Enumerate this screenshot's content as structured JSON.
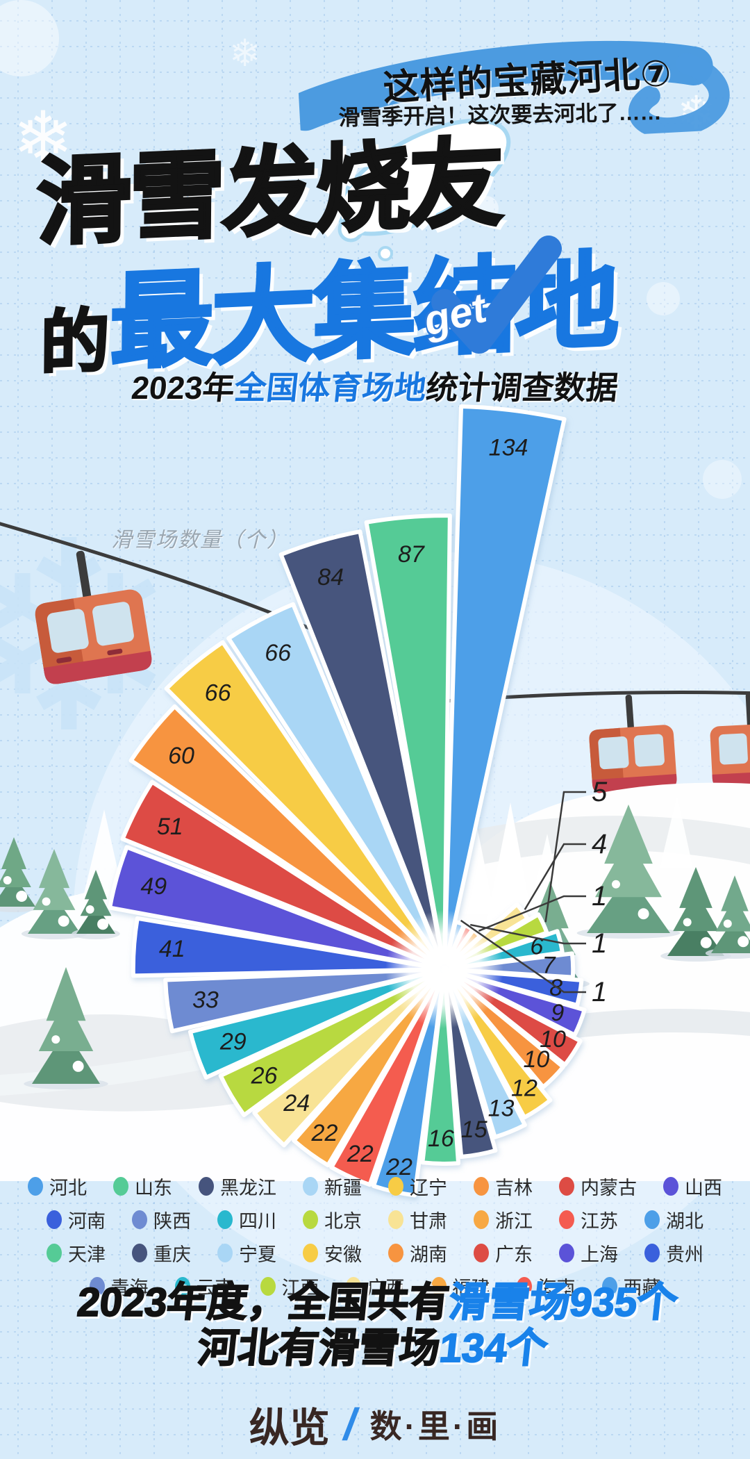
{
  "badge": {
    "title": "这样的宝藏河北⑦",
    "subtitle": "滑雪季开启！这次要去河北了……"
  },
  "title": {
    "line1": "滑雪发烧友",
    "line2_prefix": "的",
    "line2_main": "最大集结地",
    "stamp": "get"
  },
  "subtitle": {
    "prefix": "2023年",
    "highlight": "全国体育场地",
    "suffix": "统计调查数据"
  },
  "chart_data": {
    "type": "rose",
    "title": "2023年全国体育场地统计调查数据",
    "axis_label": "滑雪场数量（个）",
    "unit": "个",
    "legend_position": "bottom",
    "series": [
      {
        "name": "河北",
        "value": 134,
        "color": "#4D9FE8"
      },
      {
        "name": "山东",
        "value": 87,
        "color": "#55CB96"
      },
      {
        "name": "黑龙江",
        "value": 84,
        "color": "#46547D"
      },
      {
        "name": "新疆",
        "value": 66,
        "color": "#A9D6F5"
      },
      {
        "name": "辽宁",
        "value": 66,
        "color": "#F7CC45"
      },
      {
        "name": "吉林",
        "value": 60,
        "color": "#F79440"
      },
      {
        "name": "内蒙古",
        "value": 51,
        "color": "#DD4C44"
      },
      {
        "name": "山西",
        "value": 49,
        "color": "#5B53D8"
      },
      {
        "name": "河南",
        "value": 41,
        "color": "#3A60DC"
      },
      {
        "name": "陕西",
        "value": 33,
        "color": "#6E8BD2"
      },
      {
        "name": "四川",
        "value": 29,
        "color": "#29B8CE"
      },
      {
        "name": "北京",
        "value": 26,
        "color": "#B8D93F"
      },
      {
        "name": "甘肃",
        "value": 24,
        "color": "#F8E395"
      },
      {
        "name": "浙江",
        "value": 22,
        "color": "#F7A843"
      },
      {
        "name": "江苏",
        "value": 22,
        "color": "#F45B50"
      },
      {
        "name": "湖北",
        "value": 22,
        "color": "#4D9FE8"
      },
      {
        "name": "天津",
        "value": 16,
        "color": "#55CB96"
      },
      {
        "name": "重庆",
        "value": 15,
        "color": "#46547D"
      },
      {
        "name": "宁夏",
        "value": 13,
        "color": "#A9D6F5"
      },
      {
        "name": "安徽",
        "value": 12,
        "color": "#F7CC45"
      },
      {
        "name": "湖南",
        "value": 10,
        "color": "#F79440"
      },
      {
        "name": "广东",
        "value": 10,
        "color": "#DD4C44"
      },
      {
        "name": "上海",
        "value": 9,
        "color": "#5B53D8"
      },
      {
        "name": "贵州",
        "value": 8,
        "color": "#3A60DC"
      },
      {
        "name": "青海",
        "value": 7,
        "color": "#6E8BD2"
      },
      {
        "name": "云南",
        "value": 6,
        "color": "#29B8CE"
      },
      {
        "name": "江西",
        "value": 5,
        "color": "#B8D93F"
      },
      {
        "name": "广西",
        "value": 4,
        "color": "#F8E395"
      },
      {
        "name": "福建",
        "value": 1,
        "color": "#F7A843"
      },
      {
        "name": "海南",
        "value": 1,
        "color": "#F45B50"
      },
      {
        "name": "西藏",
        "value": 1,
        "color": "#4D9FE8"
      }
    ]
  },
  "summary": {
    "l1_black": "2023年度，全国共有",
    "l1_blue": "滑雪场935个",
    "l2_black": "河北有滑雪场",
    "l2_blue": "134个"
  },
  "footer": {
    "brand": "纵览",
    "divider": "/",
    "series_name": "数·里·画"
  },
  "colors": {
    "accent_blue": "#1877E0",
    "summary_blue": "#1982EA",
    "badge_swoosh": "#4C9BE0",
    "background": "#d7ebfa"
  }
}
